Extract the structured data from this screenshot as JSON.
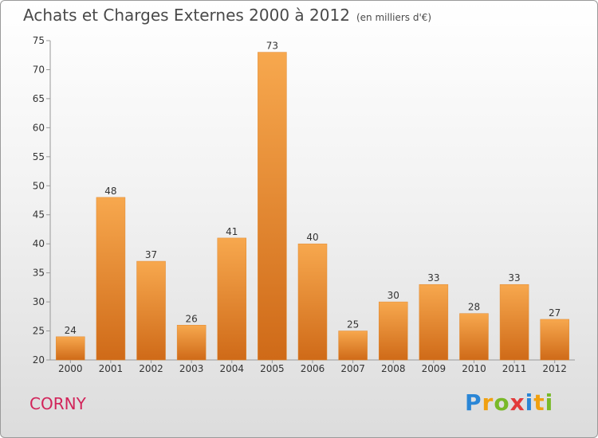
{
  "header": {
    "title": "Achats et Charges Externes 2000 à 2012",
    "subtitle": "(en milliers d'€)"
  },
  "footer": {
    "commune": "CORNY",
    "logo_text": "Proxiti"
  },
  "colors": {
    "bar_light": "#f7a84e",
    "bar_dark": "#cf6a18",
    "commune": "#d2245a"
  },
  "chart_data": {
    "type": "bar",
    "title": "Achats et Charges Externes 2000 à 2012",
    "subtitle": "(en milliers d'€)",
    "categories": [
      "2000",
      "2001",
      "2002",
      "2003",
      "2004",
      "2005",
      "2006",
      "2007",
      "2008",
      "2009",
      "2010",
      "2011",
      "2012"
    ],
    "values": [
      24,
      48,
      37,
      26,
      41,
      73,
      40,
      25,
      30,
      33,
      28,
      33,
      27
    ],
    "ylim": [
      20,
      75
    ],
    "yticks": [
      20,
      25,
      30,
      35,
      40,
      45,
      50,
      55,
      60,
      65,
      70,
      75
    ],
    "grid": false,
    "legend": "none"
  }
}
